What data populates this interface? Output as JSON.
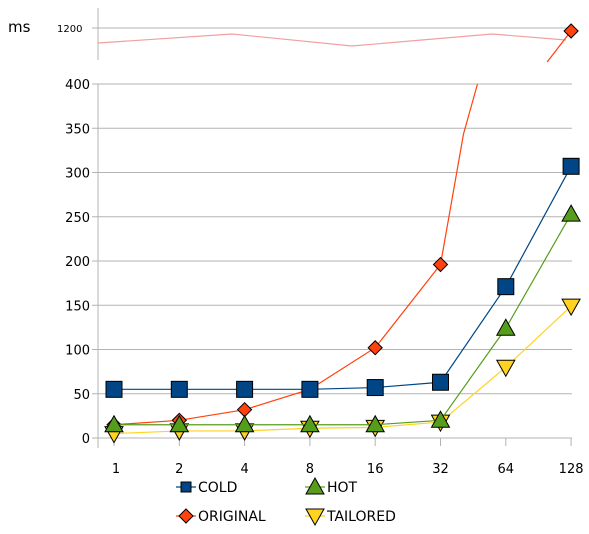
{
  "chart_data": {
    "type": "line",
    "ylabel": "ms",
    "categories": [
      "1",
      "2",
      "4",
      "8",
      "16",
      "32",
      "64",
      "128"
    ],
    "y_ticks": [
      "0",
      "50",
      "100",
      "150",
      "200",
      "250",
      "300",
      "350",
      "400"
    ],
    "ylim": [
      0,
      400
    ],
    "y_break": {
      "label": "1200",
      "value": 1200
    },
    "grid": true,
    "legend_position": "bottom",
    "series": [
      {
        "name": "COLD",
        "marker": "square",
        "color": "#004586",
        "fill": "#004586",
        "values": [
          55,
          55,
          55,
          55,
          57,
          63,
          171,
          307
        ]
      },
      {
        "name": "HOT",
        "marker": "triangle-up",
        "color": "#579d1c",
        "fill": "#579d1c",
        "values": [
          15,
          15,
          15,
          15,
          15,
          20,
          124,
          253
        ]
      },
      {
        "name": "ORIGINAL",
        "marker": "diamond",
        "color": "#ff420e",
        "fill": "#ff420e",
        "values": [
          15,
          20,
          32,
          55,
          102,
          196,
          1135,
          1195
        ]
      },
      {
        "name": "TAILORED",
        "marker": "triangle-down",
        "color": "#ffd320",
        "fill": "#ffd320",
        "values": [
          5,
          8,
          8,
          11,
          12,
          18,
          80,
          149
        ]
      }
    ],
    "break_band_values": [
      1175,
      1190,
      1170,
      1180
    ]
  }
}
